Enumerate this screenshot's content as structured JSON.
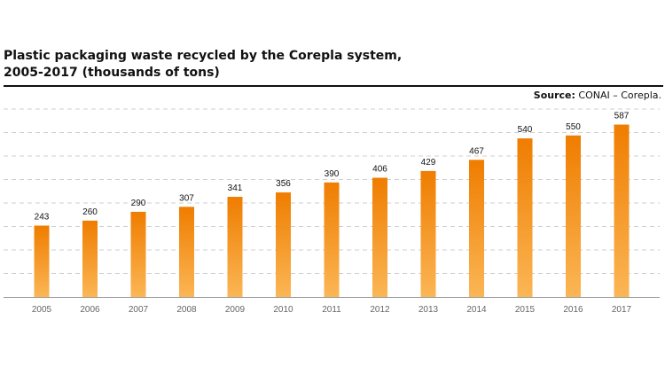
{
  "header": {
    "title_line1": "Plastic packaging waste recycled by the Corepla system,",
    "title_line2": "2005-2017 (thousands of tons)",
    "source_label": "Source:",
    "source_text": "CONAI – Corepla."
  },
  "colors": {
    "bar_top": "#ef7d00",
    "bar_bottom": "#fbb655",
    "grid": "#cfcfcf",
    "axis": "#999999"
  },
  "chart_data": {
    "type": "bar",
    "categories": [
      "2005",
      "2006",
      "2007",
      "2008",
      "2009",
      "2010",
      "2011",
      "2012",
      "2013",
      "2014",
      "2015",
      "2016",
      "2017"
    ],
    "values": [
      243,
      260,
      290,
      307,
      341,
      356,
      390,
      406,
      429,
      467,
      540,
      550,
      587
    ],
    "ylim": [
      0,
      640
    ],
    "grid": true,
    "title": "Plastic packaging waste recycled by the Corepla system, 2005-2017 (thousands of tons)"
  }
}
